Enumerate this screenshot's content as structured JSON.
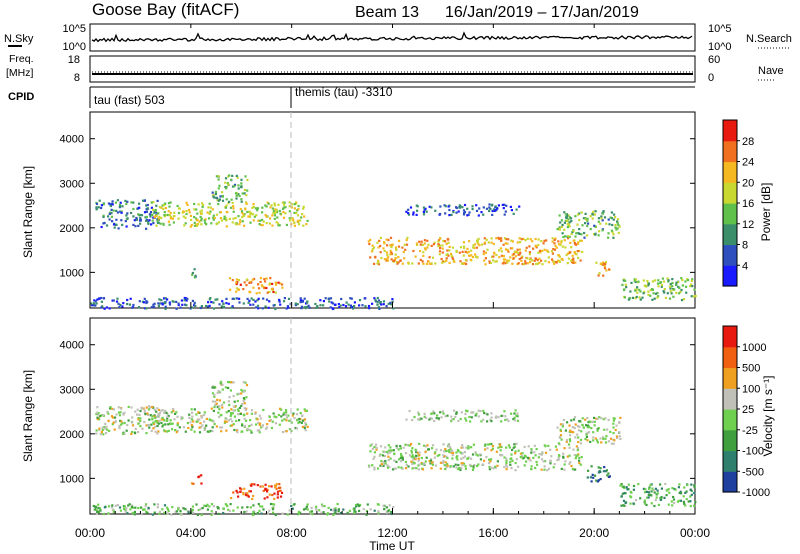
{
  "header": {
    "station": "Goose Bay (fitACF)",
    "beam_label": "Beam 13",
    "date_range": "16/Jan/2019 – 17/Jan/2019"
  },
  "top_panels": {
    "nsky": {
      "label": "N.Sky",
      "right_label": "N.Search",
      "ticks_left": [
        "10^5",
        "10^0"
      ],
      "ticks_right": [
        "10^5",
        "10^0"
      ]
    },
    "freq": {
      "label_line1": "Freq.",
      "label_line2": "[MHz]",
      "right_label": "Nave",
      "ticks_left": [
        "18",
        "8"
      ],
      "ticks_right": [
        "60",
        "0"
      ]
    },
    "cpid": {
      "label": "CPID",
      "segments": [
        {
          "label": "tau (fast) 503",
          "start_hour": 0
        },
        {
          "label": "themis (tau) -3310",
          "start_hour": 8
        }
      ]
    }
  },
  "chart_data": [
    {
      "type": "heatmap",
      "name": "power",
      "ylabel": "Slant Range [km]",
      "xlabel": "Time UT",
      "ylim": [
        200,
        4600
      ],
      "yticks": [
        1000,
        2000,
        3000,
        4000
      ],
      "xlim_hours": [
        0,
        24
      ],
      "xticks": [
        "00:00",
        "04:00",
        "08:00",
        "12:00",
        "16:00",
        "20:00",
        "00:00"
      ],
      "colorbar": {
        "label": "Power [dB]",
        "ticks": [
          "4",
          "8",
          "12",
          "16",
          "20",
          "24",
          "28"
        ],
        "colors": [
          "#1a1aff",
          "#2f4fbf",
          "#3a8f6a",
          "#5fc04a",
          "#c8d830",
          "#f5b820",
          "#f07020",
          "#e81a10"
        ]
      },
      "echo_regions": [
        {
          "t_start": 0.2,
          "t_end": 2.7,
          "r_min": 2000,
          "r_max": 2650,
          "level": 0.25
        },
        {
          "t_start": 2.4,
          "t_end": 8.6,
          "r_min": 2050,
          "r_max": 2600,
          "level": 0.55
        },
        {
          "t_start": 4.8,
          "t_end": 6.2,
          "r_min": 2600,
          "r_max": 3200,
          "level": 0.4
        },
        {
          "t_start": 4.0,
          "t_end": 4.4,
          "r_min": 900,
          "r_max": 1100,
          "level": 0.35
        },
        {
          "t_start": 5.5,
          "t_end": 7.6,
          "r_min": 550,
          "r_max": 900,
          "level": 0.75
        },
        {
          "t_start": 11.0,
          "t_end": 19.5,
          "r_min": 1200,
          "r_max": 1800,
          "level": 0.7
        },
        {
          "t_start": 12.5,
          "t_end": 17.0,
          "r_min": 2300,
          "r_max": 2550,
          "level": 0.2
        },
        {
          "t_start": 18.5,
          "t_end": 21.0,
          "r_min": 1800,
          "r_max": 2400,
          "level": 0.4
        },
        {
          "t_start": 20.0,
          "t_end": 20.6,
          "r_min": 950,
          "r_max": 1300,
          "level": 0.7
        },
        {
          "t_start": 21.0,
          "t_end": 24.0,
          "r_min": 400,
          "r_max": 900,
          "level": 0.45
        },
        {
          "t_start": 0.0,
          "t_end": 12.0,
          "r_min": 200,
          "r_max": 450,
          "level": 0.2
        }
      ]
    },
    {
      "type": "heatmap",
      "name": "velocity",
      "ylabel": "Slant Range [km]",
      "xlabel": "Time UT",
      "ylim": [
        200,
        4600
      ],
      "yticks": [
        1000,
        2000,
        3000,
        4000
      ],
      "xlim_hours": [
        0,
        24
      ],
      "xticks": [
        "00:00",
        "04:00",
        "08:00",
        "12:00",
        "16:00",
        "20:00",
        "00:00"
      ],
      "colorbar": {
        "label": "Velocity [m s⁻¹]",
        "ticks": [
          "1000",
          "500",
          "100",
          "25",
          "-25",
          "-100",
          "-500",
          "-1000"
        ],
        "colors": [
          "#2040a0",
          "#2f7f6f",
          "#3f9f3f",
          "#6fd04f",
          "#c0c0b8",
          "#f0a020",
          "#f06010",
          "#e81a10"
        ]
      },
      "echo_regions": [
        {
          "t_start": 0.2,
          "t_end": 2.7,
          "r_min": 2000,
          "r_max": 2650,
          "level": 0.5
        },
        {
          "t_start": 2.4,
          "t_end": 8.6,
          "r_min": 2050,
          "r_max": 2600,
          "level": 0.5
        },
        {
          "t_start": 4.8,
          "t_end": 6.2,
          "r_min": 2600,
          "r_max": 3200,
          "level": 0.5
        },
        {
          "t_start": 4.0,
          "t_end": 4.4,
          "r_min": 900,
          "r_max": 1100,
          "level": 0.85
        },
        {
          "t_start": 5.5,
          "t_end": 7.6,
          "r_min": 550,
          "r_max": 900,
          "level": 0.85
        },
        {
          "t_start": 11.0,
          "t_end": 19.5,
          "r_min": 1200,
          "r_max": 1800,
          "level": 0.5
        },
        {
          "t_start": 12.5,
          "t_end": 17.0,
          "r_min": 2300,
          "r_max": 2550,
          "level": 0.45
        },
        {
          "t_start": 18.5,
          "t_end": 21.0,
          "r_min": 1800,
          "r_max": 2400,
          "level": 0.5
        },
        {
          "t_start": 19.7,
          "t_end": 20.6,
          "r_min": 950,
          "r_max": 1300,
          "level": 0.2
        },
        {
          "t_start": 21.0,
          "t_end": 24.0,
          "r_min": 400,
          "r_max": 900,
          "level": 0.35
        },
        {
          "t_start": 0.0,
          "t_end": 12.0,
          "r_min": 200,
          "r_max": 450,
          "level": 0.4
        }
      ]
    }
  ]
}
